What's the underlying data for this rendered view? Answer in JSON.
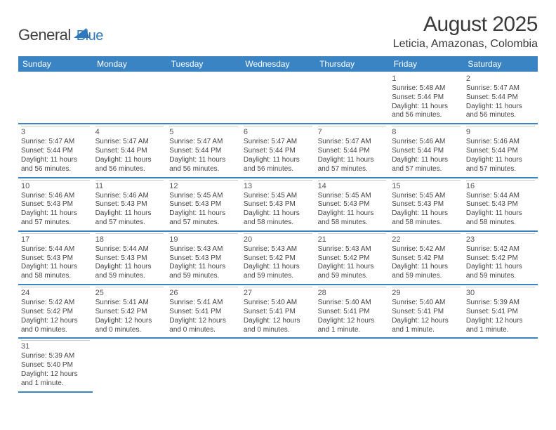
{
  "logo": {
    "text1": "General",
    "text2": "Blue"
  },
  "title": "August 2025",
  "location": "Leticia, Amazonas, Colombia",
  "colors": {
    "brand": "#3b84c4",
    "text": "#3a3a3a"
  },
  "weekdays": [
    "Sunday",
    "Monday",
    "Tuesday",
    "Wednesday",
    "Thursday",
    "Friday",
    "Saturday"
  ],
  "weeks": [
    [
      null,
      null,
      null,
      null,
      null,
      {
        "n": "1",
        "sr": "5:48 AM",
        "ss": "5:44 PM",
        "dl": "11 hours and 56 minutes."
      },
      {
        "n": "2",
        "sr": "5:47 AM",
        "ss": "5:44 PM",
        "dl": "11 hours and 56 minutes."
      }
    ],
    [
      {
        "n": "3",
        "sr": "5:47 AM",
        "ss": "5:44 PM",
        "dl": "11 hours and 56 minutes."
      },
      {
        "n": "4",
        "sr": "5:47 AM",
        "ss": "5:44 PM",
        "dl": "11 hours and 56 minutes."
      },
      {
        "n": "5",
        "sr": "5:47 AM",
        "ss": "5:44 PM",
        "dl": "11 hours and 56 minutes."
      },
      {
        "n": "6",
        "sr": "5:47 AM",
        "ss": "5:44 PM",
        "dl": "11 hours and 56 minutes."
      },
      {
        "n": "7",
        "sr": "5:47 AM",
        "ss": "5:44 PM",
        "dl": "11 hours and 57 minutes."
      },
      {
        "n": "8",
        "sr": "5:46 AM",
        "ss": "5:44 PM",
        "dl": "11 hours and 57 minutes."
      },
      {
        "n": "9",
        "sr": "5:46 AM",
        "ss": "5:44 PM",
        "dl": "11 hours and 57 minutes."
      }
    ],
    [
      {
        "n": "10",
        "sr": "5:46 AM",
        "ss": "5:43 PM",
        "dl": "11 hours and 57 minutes."
      },
      {
        "n": "11",
        "sr": "5:46 AM",
        "ss": "5:43 PM",
        "dl": "11 hours and 57 minutes."
      },
      {
        "n": "12",
        "sr": "5:45 AM",
        "ss": "5:43 PM",
        "dl": "11 hours and 57 minutes."
      },
      {
        "n": "13",
        "sr": "5:45 AM",
        "ss": "5:43 PM",
        "dl": "11 hours and 58 minutes."
      },
      {
        "n": "14",
        "sr": "5:45 AM",
        "ss": "5:43 PM",
        "dl": "11 hours and 58 minutes."
      },
      {
        "n": "15",
        "sr": "5:45 AM",
        "ss": "5:43 PM",
        "dl": "11 hours and 58 minutes."
      },
      {
        "n": "16",
        "sr": "5:44 AM",
        "ss": "5:43 PM",
        "dl": "11 hours and 58 minutes."
      }
    ],
    [
      {
        "n": "17",
        "sr": "5:44 AM",
        "ss": "5:43 PM",
        "dl": "11 hours and 58 minutes."
      },
      {
        "n": "18",
        "sr": "5:44 AM",
        "ss": "5:43 PM",
        "dl": "11 hours and 59 minutes."
      },
      {
        "n": "19",
        "sr": "5:43 AM",
        "ss": "5:43 PM",
        "dl": "11 hours and 59 minutes."
      },
      {
        "n": "20",
        "sr": "5:43 AM",
        "ss": "5:42 PM",
        "dl": "11 hours and 59 minutes."
      },
      {
        "n": "21",
        "sr": "5:43 AM",
        "ss": "5:42 PM",
        "dl": "11 hours and 59 minutes."
      },
      {
        "n": "22",
        "sr": "5:42 AM",
        "ss": "5:42 PM",
        "dl": "11 hours and 59 minutes."
      },
      {
        "n": "23",
        "sr": "5:42 AM",
        "ss": "5:42 PM",
        "dl": "11 hours and 59 minutes."
      }
    ],
    [
      {
        "n": "24",
        "sr": "5:42 AM",
        "ss": "5:42 PM",
        "dl": "12 hours and 0 minutes."
      },
      {
        "n": "25",
        "sr": "5:41 AM",
        "ss": "5:42 PM",
        "dl": "12 hours and 0 minutes."
      },
      {
        "n": "26",
        "sr": "5:41 AM",
        "ss": "5:41 PM",
        "dl": "12 hours and 0 minutes."
      },
      {
        "n": "27",
        "sr": "5:40 AM",
        "ss": "5:41 PM",
        "dl": "12 hours and 0 minutes."
      },
      {
        "n": "28",
        "sr": "5:40 AM",
        "ss": "5:41 PM",
        "dl": "12 hours and 1 minute."
      },
      {
        "n": "29",
        "sr": "5:40 AM",
        "ss": "5:41 PM",
        "dl": "12 hours and 1 minute."
      },
      {
        "n": "30",
        "sr": "5:39 AM",
        "ss": "5:41 PM",
        "dl": "12 hours and 1 minute."
      }
    ],
    [
      {
        "n": "31",
        "sr": "5:39 AM",
        "ss": "5:40 PM",
        "dl": "12 hours and 1 minute."
      },
      null,
      null,
      null,
      null,
      null,
      null
    ]
  ],
  "labels": {
    "sunrise": "Sunrise: ",
    "sunset": "Sunset: ",
    "daylight": "Daylight: "
  }
}
